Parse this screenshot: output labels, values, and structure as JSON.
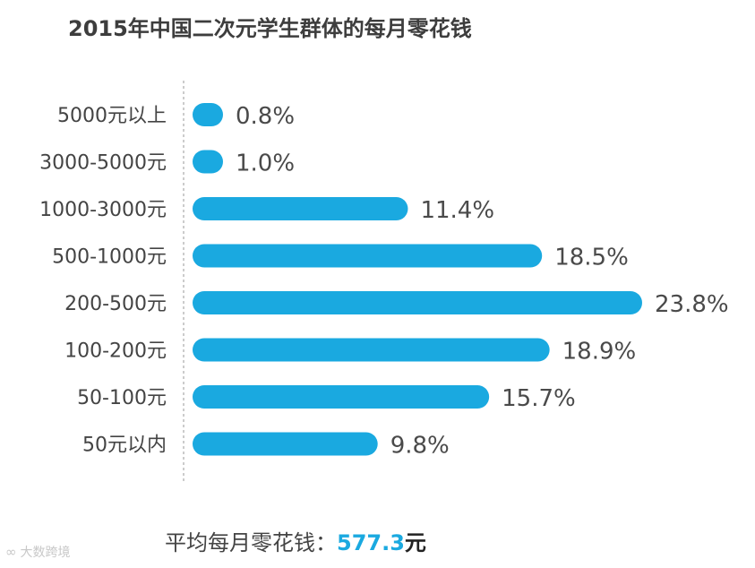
{
  "title": "2015年中国二次元学生群体的每月零花钱",
  "summary": {
    "label": "平均每月零花钱：",
    "value": "577.3",
    "unit": "元"
  },
  "watermark": {
    "text": "大数跨境",
    "icon": "logo-icon"
  },
  "colors": {
    "bar": "#1aa9e0",
    "divider": "#999999",
    "text": "#444444"
  },
  "chart_data": {
    "type": "bar",
    "orientation": "horizontal",
    "title": "2015年中国二次元学生群体的每月零花钱",
    "categories": [
      "5000元以上",
      "3000-5000元",
      "1000-3000元",
      "500-1000元",
      "200-500元",
      "100-200元",
      "50-100元",
      "50元以内"
    ],
    "values": [
      0.8,
      1.0,
      11.4,
      18.5,
      23.8,
      18.9,
      15.7,
      9.8
    ],
    "value_labels": [
      "0.8%",
      "1.0%",
      "11.4%",
      "18.5%",
      "23.8%",
      "18.9%",
      "15.7%",
      "9.8%"
    ],
    "unit": "%",
    "xlim": [
      0,
      23.8
    ],
    "grid": false,
    "legend": "none"
  }
}
